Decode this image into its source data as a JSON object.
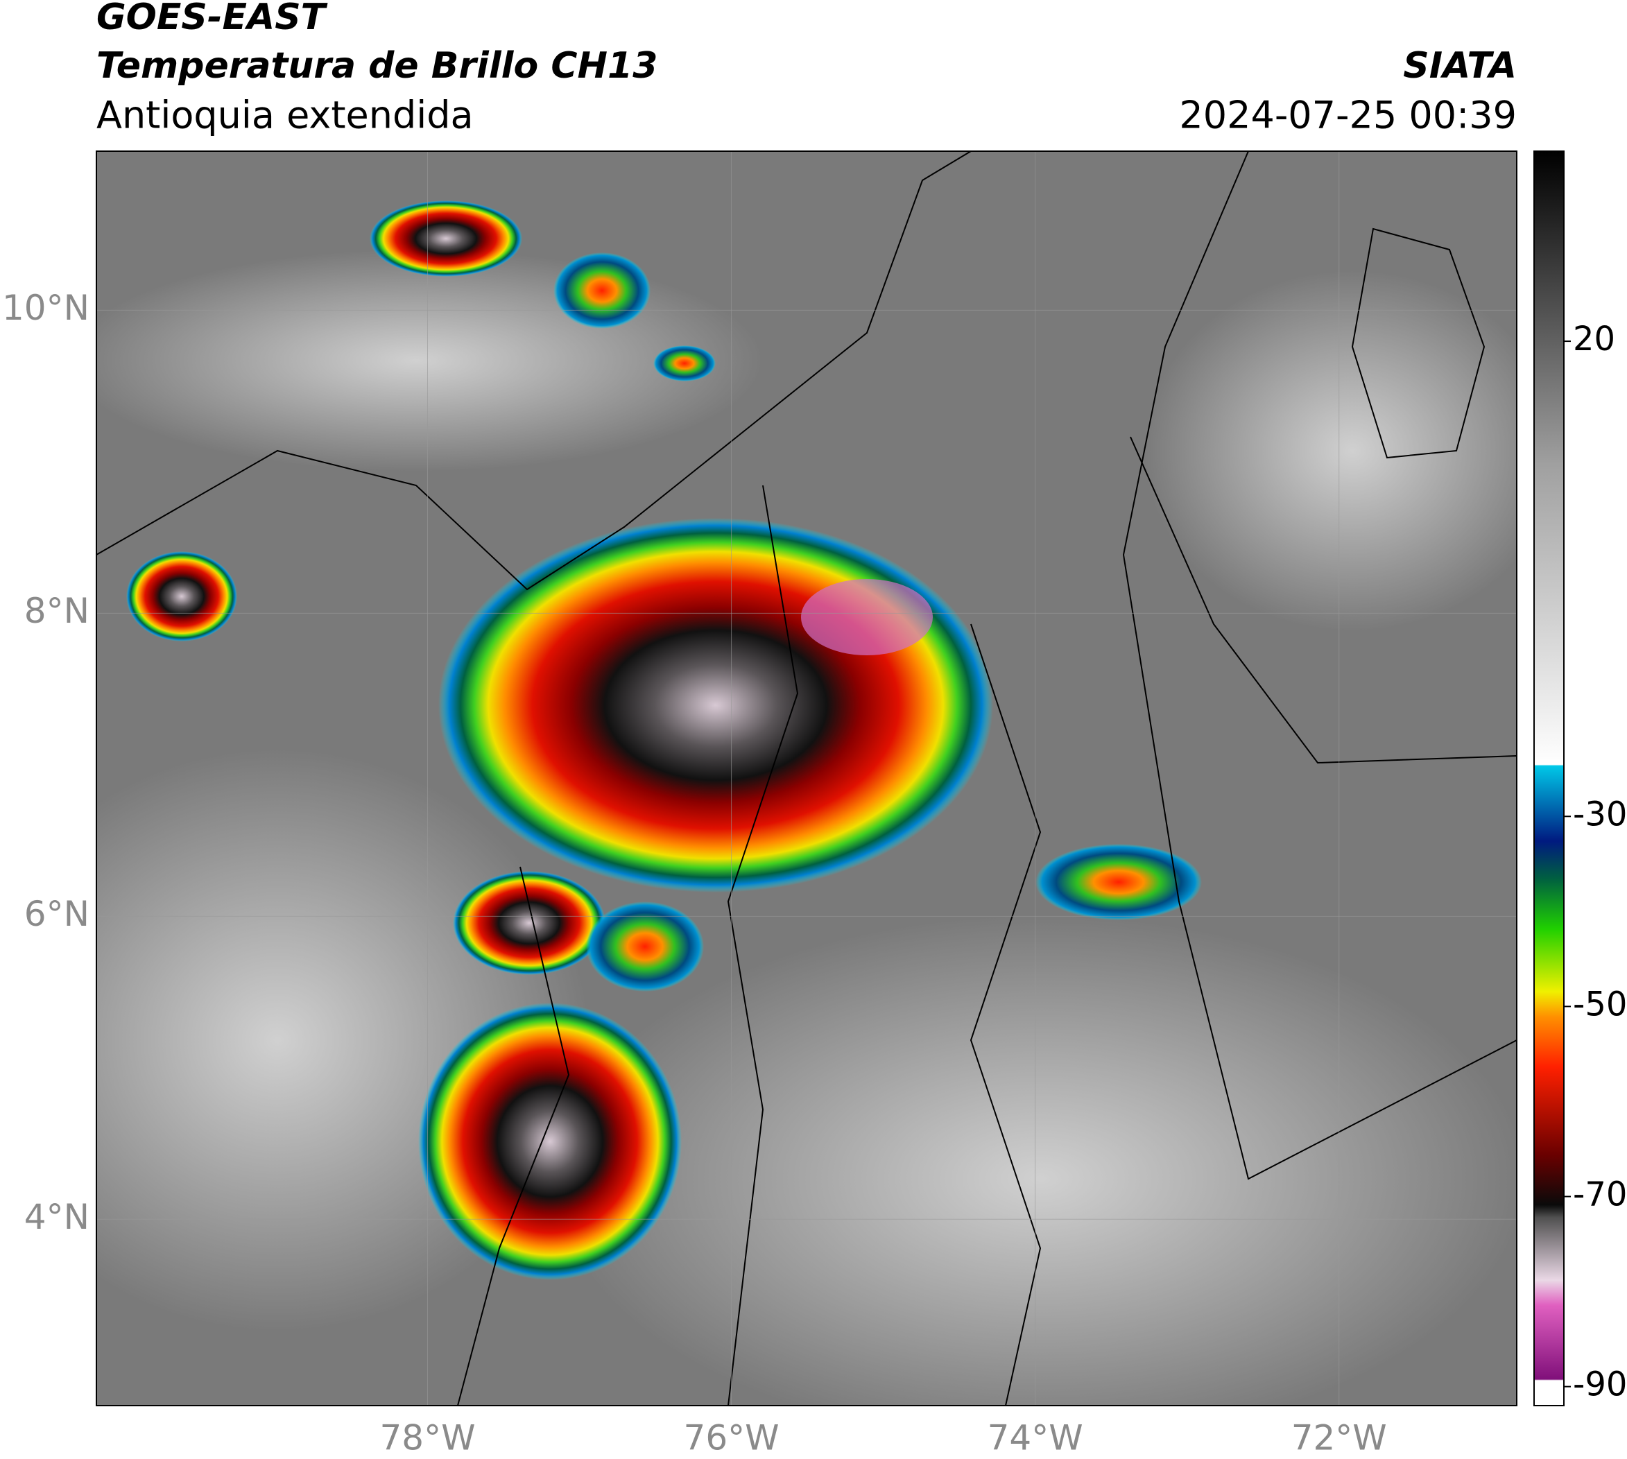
{
  "header": {
    "title": "GOES-EAST",
    "subtitle": "Temperatura de Brillo CH13",
    "region": "Antioquia extendida",
    "source": "SIATA",
    "datetime": "2024-07-25 00:39"
  },
  "map": {
    "lon_range": [
      -80.18,
      -70.83
    ],
    "lat_range": [
      2.77,
      11.05
    ],
    "lat_ticks": [
      {
        "value": 10,
        "label": "10°N"
      },
      {
        "value": 8,
        "label": "8°N"
      },
      {
        "value": 6,
        "label": "6°N"
      },
      {
        "value": 4,
        "label": "4°N"
      }
    ],
    "lon_ticks": [
      {
        "value": -78,
        "label": "78°W"
      },
      {
        "value": -76,
        "label": "76°W"
      },
      {
        "value": -74,
        "label": "74°W"
      },
      {
        "value": -72,
        "label": "72°W"
      }
    ],
    "grid": true
  },
  "colorbar": {
    "lim": [
      -92,
      40
    ],
    "ticks": [
      20,
      -30,
      -50,
      -70,
      -90
    ]
  }
}
